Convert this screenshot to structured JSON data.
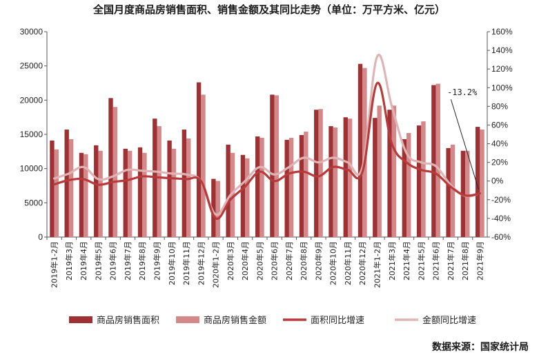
{
  "chart_data": {
    "type": "bar+line",
    "title": "全国月度商品房销售面积、销售金额及其同比走势（单位：万平方米、亿元）",
    "source": "数据来源：国家统计局",
    "categories": [
      "2019年1-2月",
      "2019年3月",
      "2019年4月",
      "2019年5月",
      "2019年6月",
      "2019年7月",
      "2019年8月",
      "2019年9月",
      "2019年10月",
      "2019年11月",
      "2019年12月",
      "2020年1-2月",
      "2020年3月",
      "2020年4月",
      "2020年5月",
      "2020年6月",
      "2020年7月",
      "2020年8月",
      "2020年9月",
      "2020年10月",
      "2020年11月",
      "2020年12月",
      "2021年1-2月",
      "2021年3月",
      "2021年4月",
      "2021年5月",
      "2021年6月",
      "2021年7月",
      "2021年8月",
      "2021年9月"
    ],
    "left_axis": {
      "ylim": [
        0,
        30000
      ],
      "ticks": [
        "0",
        "5000",
        "10000",
        "15000",
        "20000",
        "25000",
        "30000"
      ]
    },
    "right_axis": {
      "ylim": [
        -60,
        160
      ],
      "ticks": [
        "-60%",
        "-40%",
        "-20%",
        "0%",
        "20%",
        "40%",
        "60%",
        "80%",
        "100%",
        "120%",
        "140%",
        "160%"
      ]
    },
    "series": [
      {
        "name": "商品房销售面积",
        "kind": "bar",
        "axis": "left",
        "color": "#9e3134",
        "values": [
          14100,
          15700,
          12300,
          13400,
          20300,
          12900,
          13100,
          17300,
          14100,
          15700,
          22600,
          8500,
          13500,
          12000,
          14700,
          20800,
          14200,
          14900,
          18600,
          16200,
          17500,
          25300,
          17400,
          18600,
          14300,
          16300,
          22200,
          13000,
          12600,
          16100
        ]
      },
      {
        "name": "商品房销售金额",
        "kind": "bar",
        "axis": "left",
        "color": "#d4888a",
        "values": [
          12800,
          14300,
          12100,
          12600,
          19000,
          12600,
          12300,
          16200,
          12900,
          14400,
          20800,
          8200,
          12300,
          11500,
          14500,
          20700,
          14500,
          15400,
          18700,
          16000,
          17300,
          24700,
          19200,
          19200,
          15200,
          16900,
          22400,
          13500,
          12600,
          15700
        ]
      },
      {
        "name": "面积同比增速",
        "kind": "line",
        "axis": "right",
        "color": "#b83a3a",
        "values": [
          -3.6,
          1,
          2,
          -4,
          -1,
          1,
          5,
          4,
          3,
          2,
          0,
          -39.9,
          -20,
          -6,
          10,
          0,
          8,
          10,
          5,
          15,
          12,
          10,
          104.9,
          40,
          20,
          12,
          8,
          -6,
          -15.5,
          -13.2
        ]
      },
      {
        "name": "金额同比增速",
        "kind": "line",
        "axis": "right",
        "color": "#e0b4b4",
        "values": [
          2.8,
          8,
          15,
          2,
          5,
          12,
          11,
          10,
          8,
          7,
          0,
          -35.9,
          -15,
          0,
          15,
          7,
          15,
          25,
          20,
          25,
          20,
          15,
          133.4,
          80,
          30,
          20,
          16,
          -4,
          -16,
          -13.2
        ]
      }
    ],
    "annotations": [
      {
        "text": "-13.2%",
        "category": "2021年9月",
        "value": -13.2
      }
    ],
    "legend": {
      "position": "bottom"
    },
    "grid": false
  }
}
